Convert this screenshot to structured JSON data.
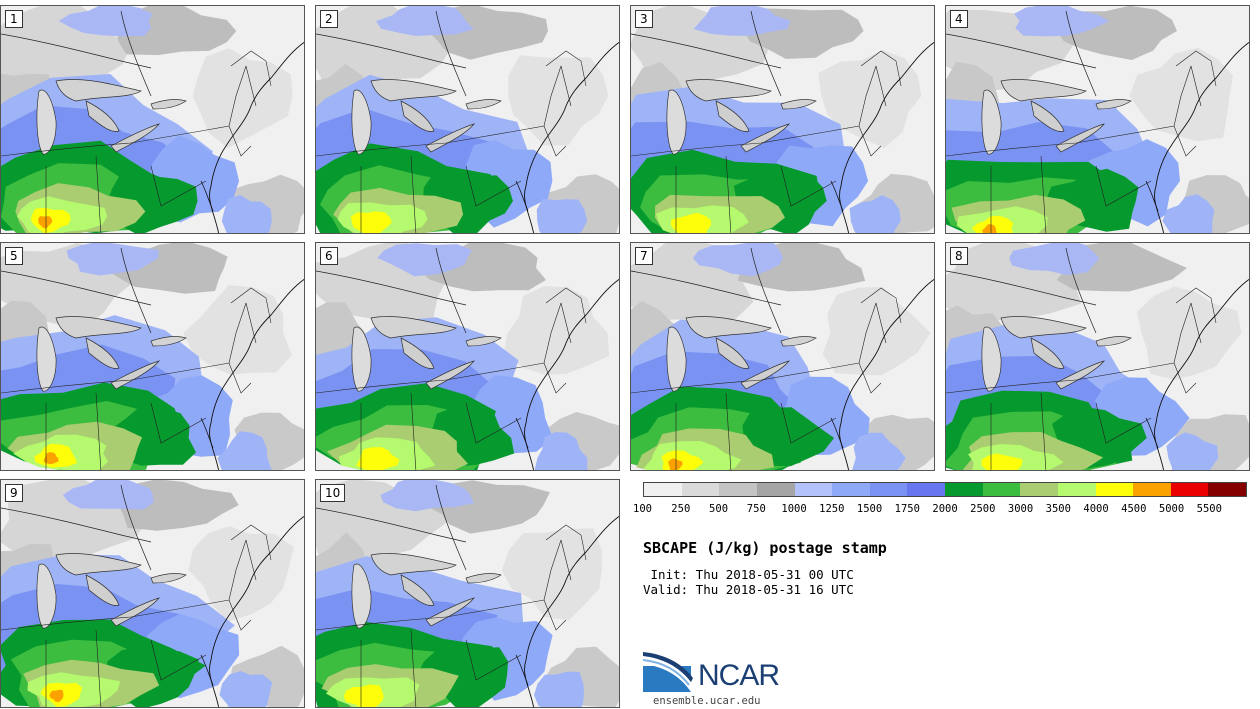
{
  "panels": [
    {
      "label": "1",
      "variant": 0
    },
    {
      "label": "2",
      "variant": 1
    },
    {
      "label": "3",
      "variant": 2
    },
    {
      "label": "4",
      "variant": 3
    },
    {
      "label": "5",
      "variant": 4
    },
    {
      "label": "6",
      "variant": 5
    },
    {
      "label": "7",
      "variant": 6
    },
    {
      "label": "8",
      "variant": 7
    },
    {
      "label": "9",
      "variant": 8
    },
    {
      "label": "10",
      "variant": 9
    }
  ],
  "colorbar": {
    "colors": [
      "#f1f1f1",
      "#dadada",
      "#c4c4c4",
      "#a5a5a5",
      "#b3c2fb",
      "#8ea9f8",
      "#7a93f2",
      "#6777f0",
      "#069a2e",
      "#3cbd3f",
      "#a9cd70",
      "#b5f96e",
      "#fefe0a",
      "#fba201",
      "#ea0000",
      "#840000"
    ],
    "ticks": [
      "100",
      "250",
      "500",
      "750",
      "1000",
      "1250",
      "1500",
      "1750",
      "2000",
      "2500",
      "3000",
      "3500",
      "4000",
      "4500",
      "5000",
      "5500"
    ]
  },
  "title": "SBCAPE (J/kg) postage stamp",
  "init": " Init: Thu 2018-05-31 00 UTC",
  "valid": "Valid: Thu 2018-05-31 16 UTC",
  "logo": {
    "word": "NCAR",
    "url": "ensemble.ucar.edu",
    "brand_color": "#1b3f73",
    "accent_color": "#2a7ac2"
  }
}
